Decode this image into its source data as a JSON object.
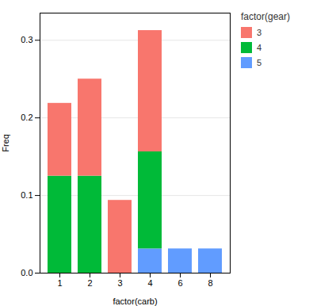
{
  "chart_data": {
    "type": "bar",
    "stacked": true,
    "categories": [
      "1",
      "2",
      "3",
      "4",
      "6",
      "8"
    ],
    "series": [
      {
        "name": "5",
        "color": "#619CFF",
        "values": [
          0.0,
          0.0,
          0.0,
          0.03125,
          0.03125,
          0.03125
        ]
      },
      {
        "name": "4",
        "color": "#00BA38",
        "values": [
          0.125,
          0.125,
          0.0,
          0.125,
          0.0,
          0.0
        ]
      },
      {
        "name": "3",
        "color": "#F8766D",
        "values": [
          0.09375,
          0.125,
          0.09375,
          0.15625,
          0.0,
          0.0
        ]
      }
    ],
    "xlabel": "factor(carb)",
    "ylabel": "Freq",
    "legend_title": "factor(gear)",
    "ylim": [
      0.0,
      0.335
    ],
    "yticks": [
      {
        "value": 0.0,
        "label": "0.0"
      },
      0.1,
      0.2,
      0.3
    ],
    "grid": true,
    "legend": "right"
  }
}
